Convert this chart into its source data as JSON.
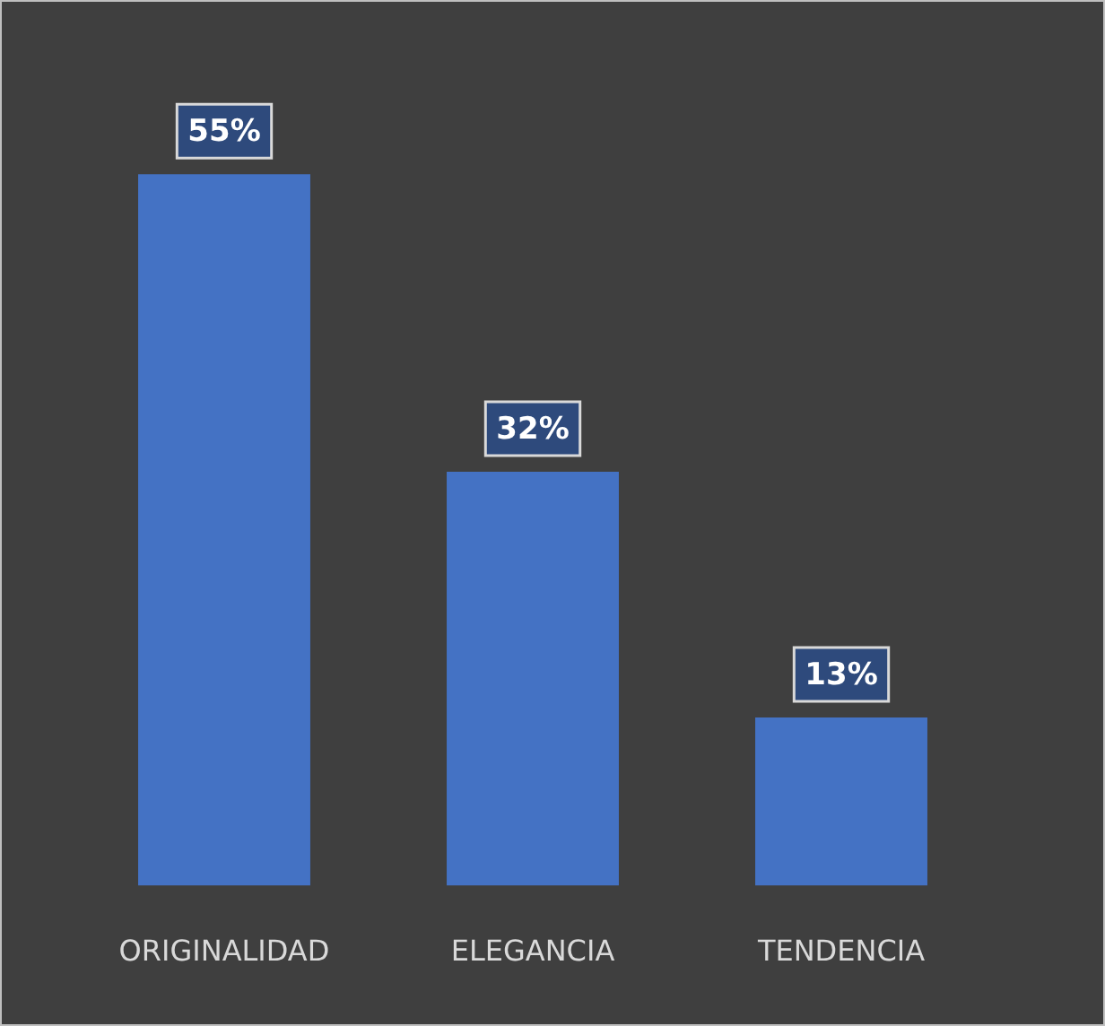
{
  "chart_data": {
    "type": "bar",
    "categories": [
      "ORIGINALIDAD",
      "ELEGANCIA",
      "TENDENCIA"
    ],
    "values": [
      55,
      32,
      13
    ],
    "value_labels": [
      "55%",
      "32%",
      "13%"
    ],
    "color": "#4472c4",
    "relative": false,
    "grid": false,
    "legend": false
  }
}
